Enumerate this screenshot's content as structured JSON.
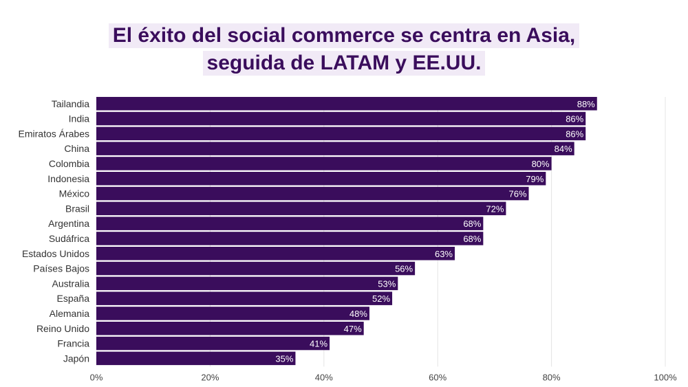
{
  "chart_data": {
    "type": "bar",
    "orientation": "horizontal",
    "title_lines": [
      "El éxito del social commerce se centra en Asia,",
      "seguida de LATAM y EE.UU."
    ],
    "categories": [
      "Tailandia",
      "India",
      "Emiratos Árabes",
      "China",
      "Colombia",
      "Indonesia",
      "México",
      "Brasil",
      "Argentina",
      "Sudáfrica",
      "Estados Unidos",
      "Países Bajos",
      "Australia",
      "España",
      "Alemania",
      "Reino Unido",
      "Francia",
      "Japón"
    ],
    "values": [
      88,
      86,
      86,
      84,
      80,
      79,
      76,
      72,
      68,
      68,
      63,
      56,
      53,
      52,
      48,
      47,
      41,
      35
    ],
    "value_labels": [
      "88%",
      "86%",
      "86%",
      "84%",
      "80%",
      "79%",
      "76%",
      "72%",
      "68%",
      "68%",
      "63%",
      "56%",
      "53%",
      "52%",
      "48%",
      "47%",
      "41%",
      "35%"
    ],
    "xlim": [
      0,
      100
    ],
    "x_ticks": [
      0,
      20,
      40,
      60,
      80,
      100
    ],
    "x_tick_labels": [
      "0%",
      "20%",
      "40%",
      "60%",
      "80%",
      "100%"
    ],
    "grid": true,
    "bar_color": "#3a0d5c",
    "title_color": "#3a0d5c",
    "title_bg": "#f1eaf6"
  }
}
